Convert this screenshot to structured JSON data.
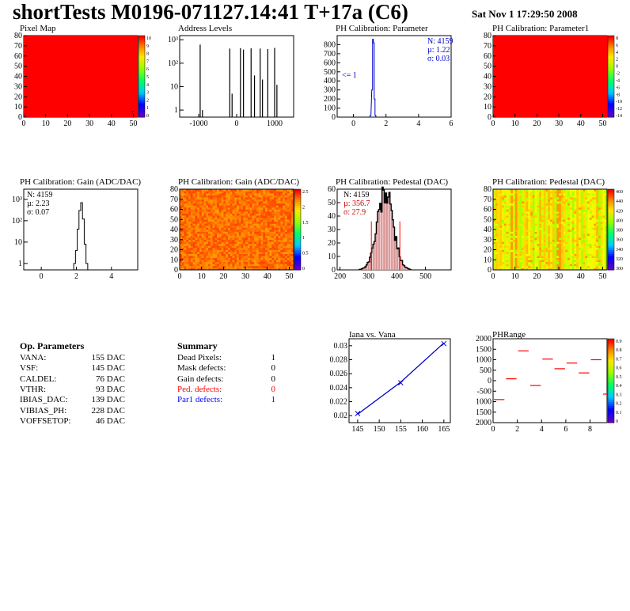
{
  "header": {
    "title": "shortTests M0196-071127.14:41 T+17a (C6)",
    "date": "Sat Nov  1 17:29:50 2008"
  },
  "chart_data": [
    {
      "id": "pixel-map",
      "type": "heatmap",
      "title": "Pixel Map",
      "xlim": [
        0,
        52
      ],
      "ylim": [
        0,
        80
      ],
      "x_ticks": [
        0,
        10,
        20,
        30,
        40,
        50
      ],
      "y_ticks": [
        0,
        10,
        20,
        30,
        40,
        50,
        60,
        70,
        80
      ],
      "z_ticks": [
        0,
        1,
        2,
        3,
        4,
        5,
        6,
        7,
        8,
        9,
        10
      ],
      "fill": "uniform",
      "fill_color": "#ff0000",
      "extra_labels": [
        "7"
      ]
    },
    {
      "id": "address-levels",
      "type": "histogram",
      "title": "Address Levels",
      "log_y": true,
      "xlim": [
        -1500,
        1500
      ],
      "ylim": [
        0.5,
        1500
      ],
      "x_ticks": [
        -1000,
        0,
        1000
      ],
      "y_ticks": [
        {
          "v": 1,
          "label": "1"
        },
        {
          "v": 10,
          "label": "10"
        },
        {
          "v": 100,
          "label": "10²"
        },
        {
          "v": 1000,
          "label": "10³"
        }
      ],
      "peaks": [
        {
          "x": -960,
          "height": 620
        },
        {
          "x": -900,
          "height": 1
        },
        {
          "x": -180,
          "height": 420
        },
        {
          "x": -120,
          "height": 5
        },
        {
          "x": 100,
          "height": 440
        },
        {
          "x": 180,
          "height": 380
        },
        {
          "x": 380,
          "height": 430
        },
        {
          "x": 470,
          "height": 30
        },
        {
          "x": 620,
          "height": 420
        },
        {
          "x": 680,
          "height": 20
        },
        {
          "x": 820,
          "height": 400
        },
        {
          "x": 1000,
          "height": 450
        },
        {
          "x": 1060,
          "height": 12
        }
      ]
    },
    {
      "id": "ph-cal-parameter",
      "type": "histogram",
      "title": "PH Calibration: Parameter",
      "xlim": [
        -1,
        6
      ],
      "ylim": [
        0,
        900
      ],
      "x_ticks": [
        0,
        2,
        4,
        6
      ],
      "y_ticks": [
        0,
        100,
        200,
        300,
        400,
        500,
        600,
        700,
        800
      ],
      "bins": [
        [
          1.05,
          20
        ],
        [
          1.15,
          300
        ],
        [
          1.2,
          860
        ],
        [
          1.25,
          820
        ],
        [
          1.3,
          200
        ],
        [
          1.35,
          20
        ]
      ],
      "stats": [
        "N: 4159",
        "µ: 1.22",
        "σ: 0.03"
      ],
      "underflow_label": "<= 1",
      "color": "#0000cc"
    },
    {
      "id": "ph-cal-parameter1",
      "type": "heatmap",
      "title": "PH Calibration: Parameter1",
      "xlim": [
        0,
        52
      ],
      "ylim": [
        0,
        80
      ],
      "x_ticks": [
        0,
        10,
        20,
        30,
        40,
        50
      ],
      "y_ticks": [
        0,
        10,
        20,
        30,
        40,
        50,
        60,
        70,
        80
      ],
      "z_ticks": [
        -14,
        -12,
        -10,
        -8,
        -6,
        -4,
        -2,
        0,
        2,
        4,
        6,
        8
      ],
      "fill": "uniform",
      "fill_color": "#ff0000"
    },
    {
      "id": "ph-cal-gain-hist",
      "type": "histogram",
      "title": "PH Calibration: Gain (ADC/DAC)",
      "log_y": true,
      "xlim": [
        -1,
        5.5
      ],
      "ylim": [
        0.5,
        3000
      ],
      "x_ticks": [
        0,
        2,
        4
      ],
      "y_ticks": [
        {
          "v": 1,
          "label": "1"
        },
        {
          "v": 10,
          "label": "10"
        },
        {
          "v": 100,
          "label": "10²"
        },
        {
          "v": 1000,
          "label": "10³"
        }
      ],
      "bins": [
        [
          1.9,
          1
        ],
        [
          2.0,
          4
        ],
        [
          2.1,
          40
        ],
        [
          2.2,
          300
        ],
        [
          2.3,
          700
        ],
        [
          2.4,
          120
        ],
        [
          2.5,
          8
        ],
        [
          2.6,
          1
        ]
      ],
      "stats": [
        "N: 4159",
        "µ: 2.23",
        "σ: 0.07"
      ]
    },
    {
      "id": "ph-cal-gain-map",
      "type": "heatmap",
      "title": "PH Calibration: Gain (ADC/DAC)",
      "xlim": [
        0,
        52
      ],
      "ylim": [
        0,
        80
      ],
      "x_ticks": [
        0,
        10,
        20,
        30,
        40,
        50
      ],
      "y_ticks": [
        0,
        10,
        20,
        30,
        40,
        50,
        60,
        70,
        80
      ],
      "z_ticks": [
        0,
        0.5,
        1,
        1.5,
        2,
        2.5
      ],
      "fill": "noise",
      "palette": [
        "#ff6600",
        "#ff7a00",
        "#ff8800",
        "#ff5500",
        "#ff9900",
        "#ff4400"
      ]
    },
    {
      "id": "ph-cal-pedestal-hist",
      "type": "histogram",
      "title": "PH Calibration: Pedestal (DAC)",
      "xlim": [
        190,
        590
      ],
      "ylim": [
        0,
        60
      ],
      "x_ticks": [
        200,
        300,
        400,
        500
      ],
      "y_ticks": [
        0,
        10,
        20,
        30,
        40,
        50,
        60
      ],
      "center": 356.7,
      "sigma": 27.9,
      "peak": 57,
      "stats": [
        "N: 4159",
        "µ: 356.7",
        "σ: 27.9"
      ],
      "cut_lines": [
        310,
        410
      ]
    },
    {
      "id": "ph-cal-pedestal-map",
      "type": "heatmap",
      "title": "PH Calibration: Pedestal (DAC)",
      "xlim": [
        0,
        52
      ],
      "ylim": [
        0,
        80
      ],
      "x_ticks": [
        0,
        10,
        20,
        30,
        40,
        50
      ],
      "y_ticks": [
        0,
        10,
        20,
        30,
        40,
        50,
        60,
        70,
        80
      ],
      "z_ticks": [
        300,
        320,
        340,
        360,
        380,
        400,
        420,
        440,
        460
      ],
      "fill": "columns",
      "palette": [
        "#ffdd00",
        "#ffbb00",
        "#ffee00",
        "#ccff00",
        "#aaff00",
        "#ff9900",
        "#ffcc00",
        "#eeff00"
      ]
    },
    {
      "id": "iana-vs-vana",
      "type": "line",
      "title": "Iana vs. Vana",
      "xlim": [
        143,
        166.5
      ],
      "ylim": [
        0.019,
        0.031
      ],
      "x_ticks": [
        145,
        150,
        155,
        160,
        165
      ],
      "y_ticks": [
        0.02,
        0.022,
        0.024,
        0.026,
        0.028,
        0.03
      ],
      "x": [
        145,
        155,
        165
      ],
      "y": [
        0.0203,
        0.0247,
        0.0303
      ],
      "fit": [
        [
          145,
          0.0202
        ],
        [
          155,
          0.0248
        ],
        [
          165,
          0.0304
        ]
      ],
      "color": "#0000cc"
    },
    {
      "id": "ph-range",
      "type": "scatter",
      "title": "PHRange",
      "xlim": [
        0,
        9.4
      ],
      "ylim": [
        -2000,
        2000
      ],
      "x_ticks": [
        0,
        2,
        4,
        6,
        8
      ],
      "y_ticks": [
        -2000,
        -1500,
        -1000,
        -500,
        0,
        500,
        1000,
        1500,
        2000
      ],
      "y_tick_labels": [
        "2000",
        "1500",
        "1000",
        "-500",
        "0",
        "500",
        "1000",
        "1500",
        "2000"
      ],
      "z_ticks": [
        0,
        0.1,
        0.2,
        0.3,
        0.4,
        0.5,
        0.6,
        0.7,
        0.8,
        0.9
      ],
      "segments": [
        [
          0,
          -900
        ],
        [
          1,
          90
        ],
        [
          2,
          1420
        ],
        [
          3,
          -230
        ],
        [
          4,
          1030
        ],
        [
          5,
          570
        ],
        [
          6,
          840
        ],
        [
          7,
          370
        ],
        [
          8,
          1000
        ],
        [
          9,
          -640
        ]
      ],
      "color": "#ff0000"
    }
  ],
  "op_params": {
    "title": "Op. Parameters",
    "rows": [
      {
        "name": "VANA:",
        "value": "155 DAC"
      },
      {
        "name": "VSF:",
        "value": "145 DAC"
      },
      {
        "name": "CALDEL:",
        "value": "76 DAC"
      },
      {
        "name": "VTHR:",
        "value": "93 DAC"
      },
      {
        "name": "IBIAS_DAC:",
        "value": "139 DAC"
      },
      {
        "name": "VIBIAS_PH:",
        "value": "228 DAC"
      },
      {
        "name": "VOFFSETOP:",
        "value": "46 DAC"
      }
    ]
  },
  "summary": {
    "title": "Summary",
    "rows": [
      {
        "name": "Dead Pixels:",
        "value": "1",
        "color": "#000000"
      },
      {
        "name": "Mask defects:",
        "value": "0",
        "color": "#000000"
      },
      {
        "name": "Gain defects:",
        "value": "0",
        "color": "#000000"
      },
      {
        "name": "Ped. defects:",
        "value": "0",
        "color": "#ff0000"
      },
      {
        "name": "Par1 defects:",
        "value": "1",
        "color": "#0000ff"
      }
    ]
  }
}
